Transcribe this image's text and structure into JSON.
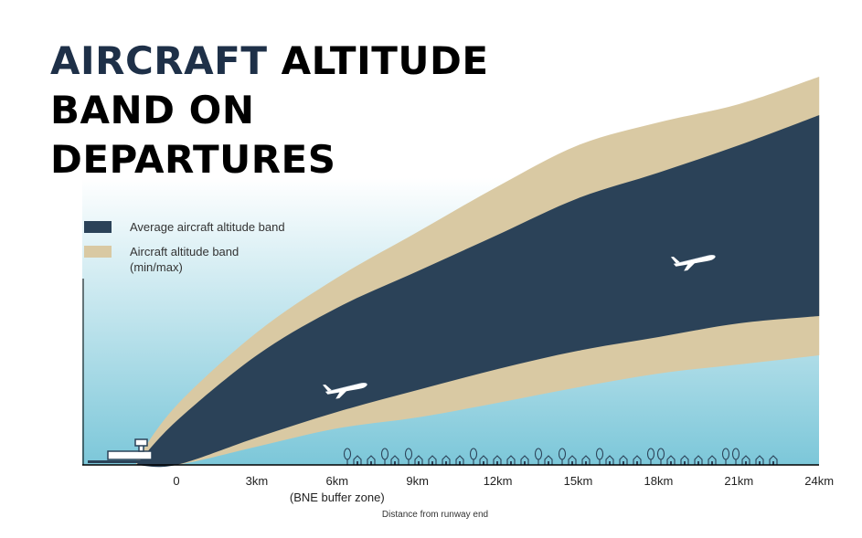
{
  "title": {
    "accent": "AIRCRAFT",
    "rest": "ALTITUDE BAND ON DEPARTURES"
  },
  "legend": [
    {
      "label": "Average aircraft altitude band",
      "color": "#2b4258"
    },
    {
      "label": "Aircraft altitude band",
      "sublabel": "(min/max)",
      "color": "#d9c9a3"
    }
  ],
  "colors": {
    "sky_top": "#ffffff",
    "sky_bottom": "#7cc7d9",
    "outer_band": "#d9c9a3",
    "average_band": "#2b4258",
    "ground_icons": "#2b4258"
  },
  "chart_data": {
    "type": "area",
    "title": "AIRCRAFT ALTITUDE BAND ON DEPARTURES",
    "xlabel": "Distance from runway end",
    "x_unit": "km",
    "xlim": [
      -2,
      24
    ],
    "tick_values": [
      0,
      3,
      6,
      9,
      12,
      15,
      18,
      21,
      24
    ],
    "tick_labels": [
      "0",
      "3km",
      "6km",
      "9km",
      "12km",
      "15km",
      "18km",
      "21km",
      "24km"
    ],
    "annotations": [
      {
        "x": 6,
        "text": "(BNE buffer zone)"
      }
    ],
    "y_axis_labels": false,
    "series": [
      {
        "name": "Aircraft altitude band (min/max)",
        "x": [
          -1.5,
          0,
          3,
          6,
          9,
          12,
          15,
          18,
          21,
          24
        ],
        "upper": [
          5,
          65,
          145,
          205,
          255,
          305,
          350,
          375,
          395,
          425
        ],
        "lower": [
          0,
          0,
          20,
          40,
          52,
          68,
          85,
          100,
          110,
          120
        ]
      },
      {
        "name": "Average aircraft altitude band",
        "x": [
          -1.5,
          0,
          3,
          6,
          9,
          12,
          15,
          18,
          21,
          24
        ],
        "upper": [
          0,
          48,
          120,
          172,
          212,
          252,
          292,
          320,
          350,
          383
        ],
        "lower": [
          0,
          0,
          30,
          58,
          82,
          105,
          125,
          140,
          155,
          163
        ]
      }
    ],
    "planes": [
      {
        "x": 6.3,
        "y": 85
      },
      {
        "x": 19.3,
        "y": 225
      }
    ]
  }
}
